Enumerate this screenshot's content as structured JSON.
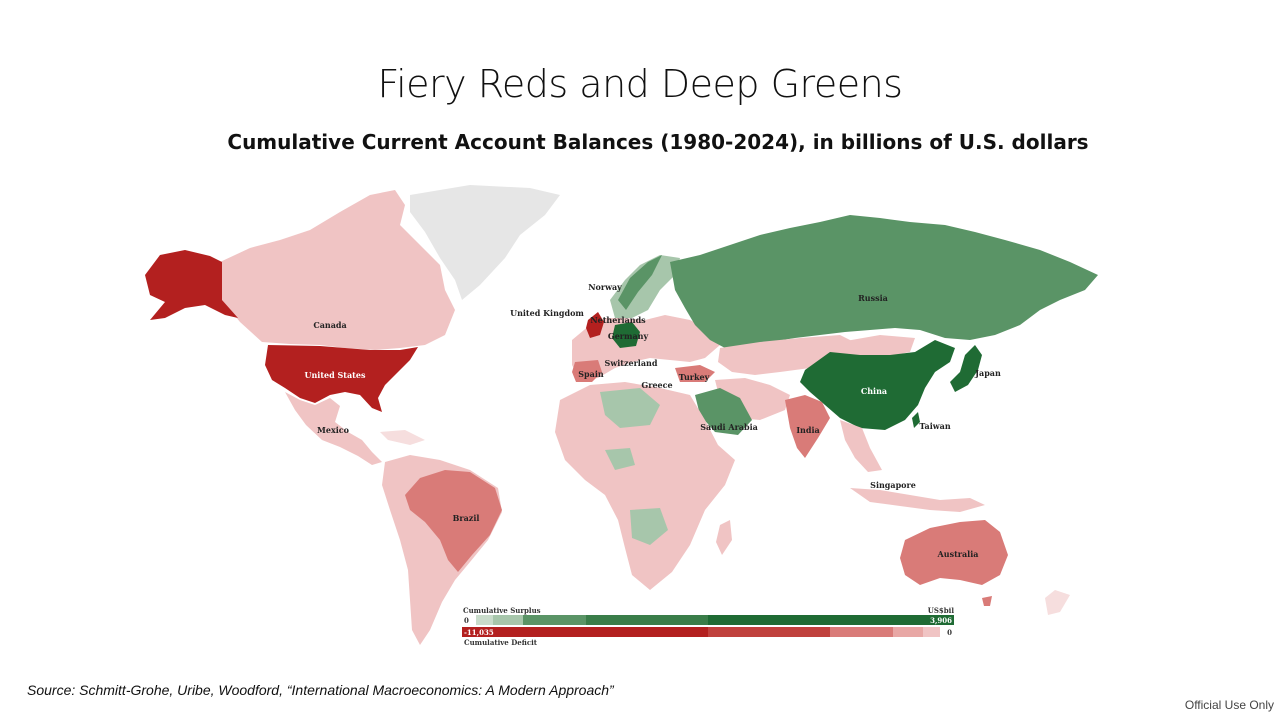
{
  "title": "Fiery Reds and Deep Greens",
  "subtitle": "Cumulative Current Account Balances (1980-2024), in billions of U.S. dollars",
  "source": "Source: Schmitt-Grohe, Uribe, Woodford, “International Macroeconomics: A Modern Approach”",
  "classification": "Official Use Only",
  "colors": {
    "deficit_dark": "#b3201f",
    "deficit_mid": "#d97b78",
    "deficit_light": "#f0c4c4",
    "deficit_pale": "#f6dede",
    "surplus_dark": "#1f6b34",
    "surplus_mid": "#5a9466",
    "surplus_light": "#a7c6ab",
    "neutral": "#e6e6e6"
  },
  "map": {
    "labels": {
      "russia": "Russia",
      "canada": "Canada",
      "united_states": "United States",
      "mexico": "Mexico",
      "brazil": "Brazil",
      "australia": "Australia",
      "china": "China",
      "india": "India",
      "japan": "Japan",
      "taiwan": "Taiwan",
      "singapore": "Singapore",
      "saudi_arabia": "Saudi Arabia",
      "turkey": "Turkey",
      "greece": "Greece",
      "switzerland": "Switzerland",
      "spain": "Spain",
      "germany": "Germany",
      "netherlands": "Netherlands",
      "united_kingdom": "United Kingdom",
      "norway": "Norway"
    }
  },
  "legend": {
    "surplus_label": "Cumulative Surplus",
    "deficit_label": "Cumulative Deficit",
    "unit": "US$bil",
    "surplus_min": "0",
    "surplus_max": "3,906",
    "deficit_min": "-11,035",
    "deficit_max": "0"
  }
}
